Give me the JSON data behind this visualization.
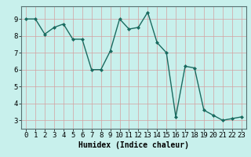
{
  "x": [
    0,
    1,
    2,
    3,
    4,
    5,
    6,
    7,
    8,
    9,
    10,
    11,
    12,
    13,
    14,
    15,
    16,
    17,
    18,
    19,
    20,
    21,
    22,
    23
  ],
  "y": [
    9.0,
    9.0,
    8.1,
    8.5,
    8.7,
    7.8,
    7.8,
    6.0,
    6.0,
    7.1,
    9.0,
    8.4,
    8.5,
    9.4,
    7.6,
    7.0,
    3.2,
    6.2,
    6.1,
    3.6,
    3.3,
    3.0,
    3.1,
    3.2
  ],
  "line_color": "#1a6b60",
  "marker": "D",
  "markersize": 2.0,
  "linewidth": 1.0,
  "xlabel": "Humidex (Indice chaleur)",
  "xlabel_fontsize": 7,
  "background_color": "#c8f0ec",
  "grid_color": "#d4a0a0",
  "ylim": [
    2.5,
    9.75
  ],
  "xlim": [
    -0.5,
    23.5
  ],
  "yticks": [
    3,
    4,
    5,
    6,
    7,
    8,
    9
  ],
  "xticks": [
    0,
    1,
    2,
    3,
    4,
    5,
    6,
    7,
    8,
    9,
    10,
    11,
    12,
    13,
    14,
    15,
    16,
    17,
    18,
    19,
    20,
    21,
    22,
    23
  ],
  "tick_fontsize": 6.5,
  "title": ""
}
